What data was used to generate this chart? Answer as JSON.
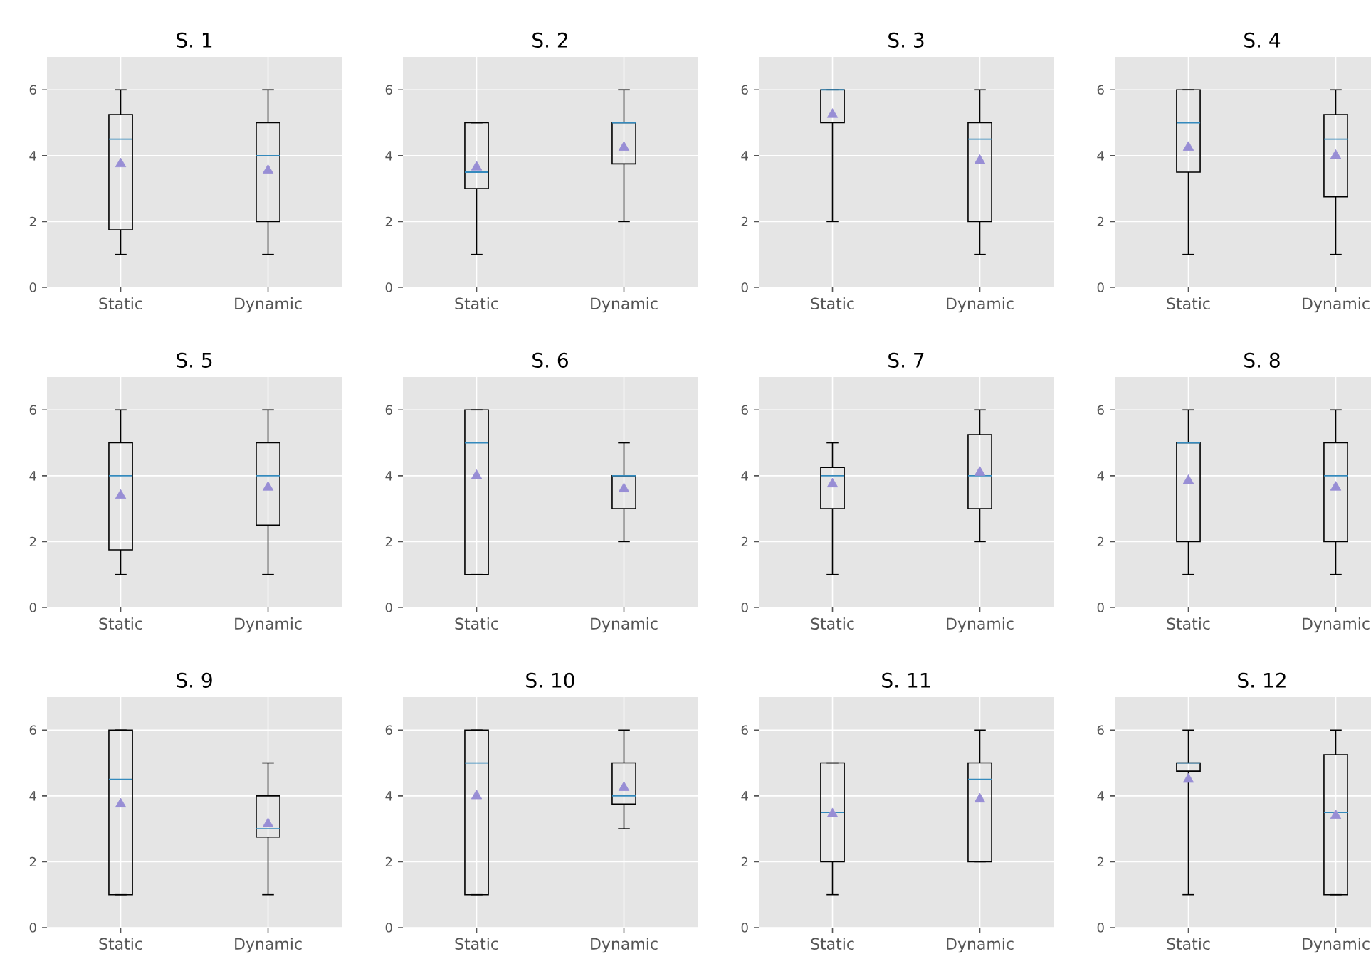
{
  "chart_data": [
    {
      "type": "box",
      "title": "S. 1",
      "categories": [
        "Static",
        "Dynamic"
      ],
      "ylim": [
        0,
        7
      ],
      "yticks": [
        0,
        2,
        4,
        6
      ],
      "grid": true,
      "boxes": [
        {
          "low": 1,
          "q1": 1.75,
          "median": 4.5,
          "q3": 5.25,
          "high": 6,
          "mean": 3.75
        },
        {
          "low": 1,
          "q1": 2,
          "median": 4,
          "q3": 5,
          "high": 6,
          "mean": 3.55
        }
      ]
    },
    {
      "type": "box",
      "title": "S. 2",
      "categories": [
        "Static",
        "Dynamic"
      ],
      "ylim": [
        0,
        7
      ],
      "yticks": [
        0,
        2,
        4,
        6
      ],
      "grid": true,
      "boxes": [
        {
          "low": 1,
          "q1": 3,
          "median": 3.5,
          "q3": 5,
          "high": 5,
          "mean": 3.65
        },
        {
          "low": 2,
          "q1": 3.75,
          "median": 5,
          "q3": 5,
          "high": 6,
          "mean": 4.25
        }
      ]
    },
    {
      "type": "box",
      "title": "S. 3",
      "categories": [
        "Static",
        "Dynamic"
      ],
      "ylim": [
        0,
        7
      ],
      "yticks": [
        0,
        2,
        4,
        6
      ],
      "grid": true,
      "boxes": [
        {
          "low": 2,
          "q1": 5,
          "median": 6,
          "q3": 6,
          "high": 6,
          "mean": 5.25
        },
        {
          "low": 1,
          "q1": 2,
          "median": 4.5,
          "q3": 5,
          "high": 6,
          "mean": 3.85
        }
      ]
    },
    {
      "type": "box",
      "title": "S. 4",
      "categories": [
        "Static",
        "Dynamic"
      ],
      "ylim": [
        0,
        7
      ],
      "yticks": [
        0,
        2,
        4,
        6
      ],
      "grid": true,
      "boxes": [
        {
          "low": 1,
          "q1": 3.5,
          "median": 5,
          "q3": 6,
          "high": 6,
          "mean": 4.25
        },
        {
          "low": 1,
          "q1": 2.75,
          "median": 4.5,
          "q3": 5.25,
          "high": 6,
          "mean": 4.0
        }
      ]
    },
    {
      "type": "box",
      "title": "S. 5",
      "categories": [
        "Static",
        "Dynamic"
      ],
      "ylim": [
        0,
        7
      ],
      "yticks": [
        0,
        2,
        4,
        6
      ],
      "grid": true,
      "boxes": [
        {
          "low": 1,
          "q1": 1.75,
          "median": 4,
          "q3": 5,
          "high": 6,
          "mean": 3.4
        },
        {
          "low": 1,
          "q1": 2.5,
          "median": 4,
          "q3": 5,
          "high": 6,
          "mean": 3.65
        }
      ]
    },
    {
      "type": "box",
      "title": "S. 6",
      "categories": [
        "Static",
        "Dynamic"
      ],
      "ylim": [
        0,
        7
      ],
      "yticks": [
        0,
        2,
        4,
        6
      ],
      "grid": true,
      "boxes": [
        {
          "low": 1,
          "q1": 1,
          "median": 5,
          "q3": 6,
          "high": 6,
          "mean": 4.0
        },
        {
          "low": 2,
          "q1": 3,
          "median": 4,
          "q3": 4,
          "high": 5,
          "mean": 3.6
        }
      ]
    },
    {
      "type": "box",
      "title": "S. 7",
      "categories": [
        "Static",
        "Dynamic"
      ],
      "ylim": [
        0,
        7
      ],
      "yticks": [
        0,
        2,
        4,
        6
      ],
      "grid": true,
      "boxes": [
        {
          "low": 1,
          "q1": 3,
          "median": 4,
          "q3": 4.25,
          "high": 5,
          "mean": 3.75
        },
        {
          "low": 2,
          "q1": 3,
          "median": 4,
          "q3": 5.25,
          "high": 6,
          "mean": 4.1
        }
      ]
    },
    {
      "type": "box",
      "title": "S. 8",
      "categories": [
        "Static",
        "Dynamic"
      ],
      "ylim": [
        0,
        7
      ],
      "yticks": [
        0,
        2,
        4,
        6
      ],
      "grid": true,
      "boxes": [
        {
          "low": 1,
          "q1": 2,
          "median": 5,
          "q3": 5,
          "high": 6,
          "mean": 3.85
        },
        {
          "low": 1,
          "q1": 2,
          "median": 4,
          "q3": 5,
          "high": 6,
          "mean": 3.65
        }
      ]
    },
    {
      "type": "box",
      "title": "S. 9",
      "categories": [
        "Static",
        "Dynamic"
      ],
      "ylim": [
        0,
        7
      ],
      "yticks": [
        0,
        2,
        4,
        6
      ],
      "grid": true,
      "boxes": [
        {
          "low": 1,
          "q1": 1,
          "median": 4.5,
          "q3": 6,
          "high": 6,
          "mean": 3.75
        },
        {
          "low": 1,
          "q1": 2.75,
          "median": 3,
          "q3": 4,
          "high": 5,
          "mean": 3.15
        }
      ]
    },
    {
      "type": "box",
      "title": "S. 10",
      "categories": [
        "Static",
        "Dynamic"
      ],
      "ylim": [
        0,
        7
      ],
      "yticks": [
        0,
        2,
        4,
        6
      ],
      "grid": true,
      "boxes": [
        {
          "low": 1,
          "q1": 1,
          "median": 5,
          "q3": 6,
          "high": 6,
          "mean": 4.0
        },
        {
          "low": 3,
          "q1": 3.75,
          "median": 4,
          "q3": 5,
          "high": 6,
          "mean": 4.25
        }
      ]
    },
    {
      "type": "box",
      "title": "S. 11",
      "categories": [
        "Static",
        "Dynamic"
      ],
      "ylim": [
        0,
        7
      ],
      "yticks": [
        0,
        2,
        4,
        6
      ],
      "grid": true,
      "boxes": [
        {
          "low": 1,
          "q1": 2,
          "median": 3.5,
          "q3": 5,
          "high": 5,
          "mean": 3.45
        },
        {
          "low": 2,
          "q1": 2,
          "median": 4.5,
          "q3": 5,
          "high": 6,
          "mean": 3.9
        }
      ]
    },
    {
      "type": "box",
      "title": "S. 12",
      "categories": [
        "Static",
        "Dynamic"
      ],
      "ylim": [
        0,
        7
      ],
      "yticks": [
        0,
        2,
        4,
        6
      ],
      "grid": true,
      "boxes": [
        {
          "low": 1,
          "q1": 4.75,
          "median": 5,
          "q3": 5,
          "high": 6,
          "mean": 4.5
        },
        {
          "low": 1,
          "q1": 1,
          "median": 3.5,
          "q3": 5.25,
          "high": 6,
          "mean": 3.4
        }
      ]
    }
  ]
}
